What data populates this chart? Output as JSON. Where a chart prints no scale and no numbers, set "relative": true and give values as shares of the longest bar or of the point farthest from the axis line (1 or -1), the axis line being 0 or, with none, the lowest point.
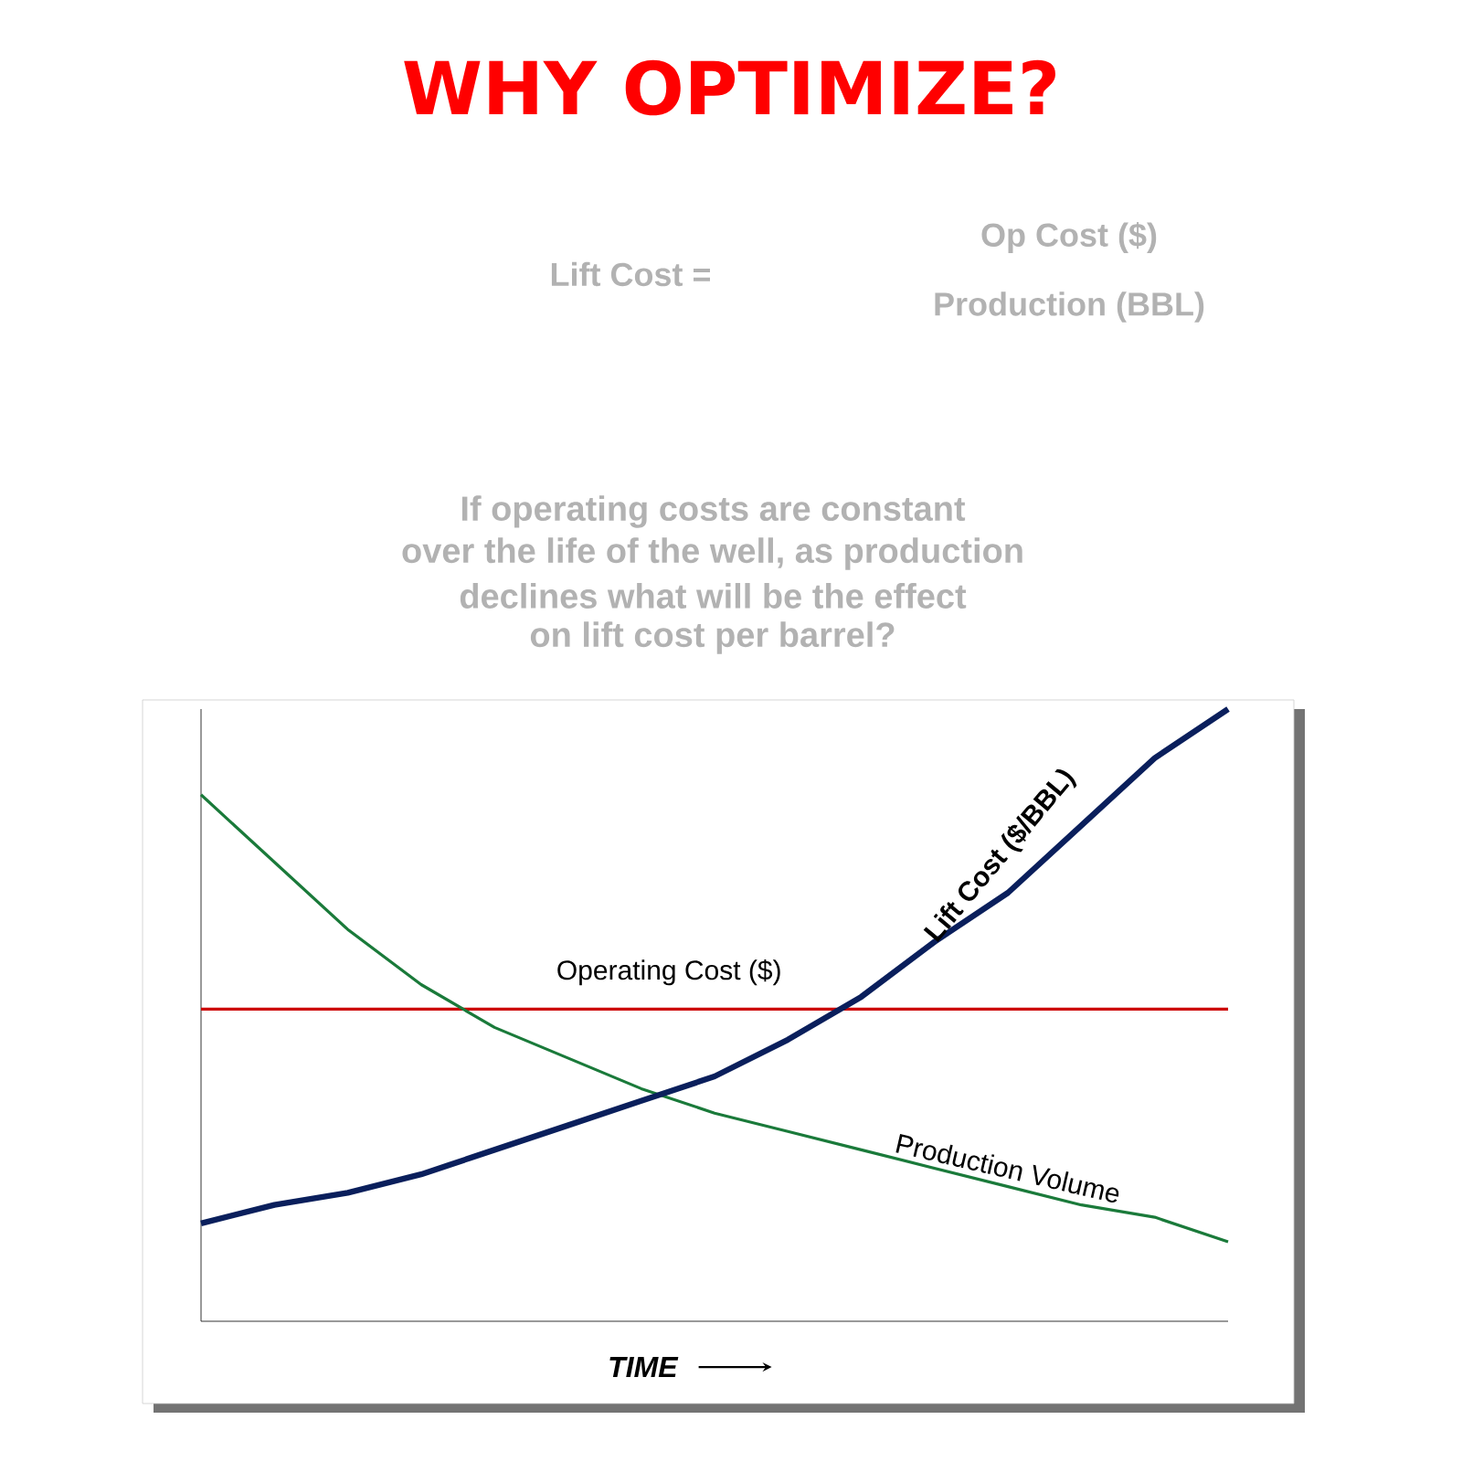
{
  "chart_data": {
    "type": "line",
    "relative": true,
    "marker": "none",
    "title": "WHY OPTIMIZE?",
    "xlabel": "TIME",
    "categories": [
      null,
      null,
      null,
      null,
      null,
      null,
      null,
      null,
      null,
      null,
      null,
      null,
      null,
      null,
      null
    ],
    "series": [
      {
        "name": "Operating Cost ($)",
        "color": "#cc0000",
        "values": [
          0.51,
          0.51,
          0.51,
          0.51,
          0.51,
          0.51,
          0.51,
          0.51,
          0.51,
          0.51,
          0.51,
          0.51,
          0.51,
          0.51,
          0.51
        ]
      },
      {
        "name": "Production Volume",
        "color": "#1a7a3a",
        "values": [
          0.86,
          0.75,
          0.64,
          0.55,
          0.48,
          0.43,
          0.38,
          0.34,
          0.31,
          0.28,
          0.25,
          0.22,
          0.19,
          0.17,
          0.13
        ]
      },
      {
        "name": "Lift Cost ($/BBL)",
        "color": "#0a1f5c",
        "values": [
          0.16,
          0.19,
          0.21,
          0.24,
          0.28,
          0.32,
          0.36,
          0.4,
          0.46,
          0.53,
          0.62,
          0.7,
          0.81,
          0.92,
          1.0
        ]
      }
    ],
    "annotations": [
      "Lift Cost =",
      "Op Cost ($)",
      "Production (BBL)",
      "If operating costs are constant",
      "over the life of the well, as production",
      "declines what will be the effect",
      "on lift cost per barrel?"
    ]
  }
}
